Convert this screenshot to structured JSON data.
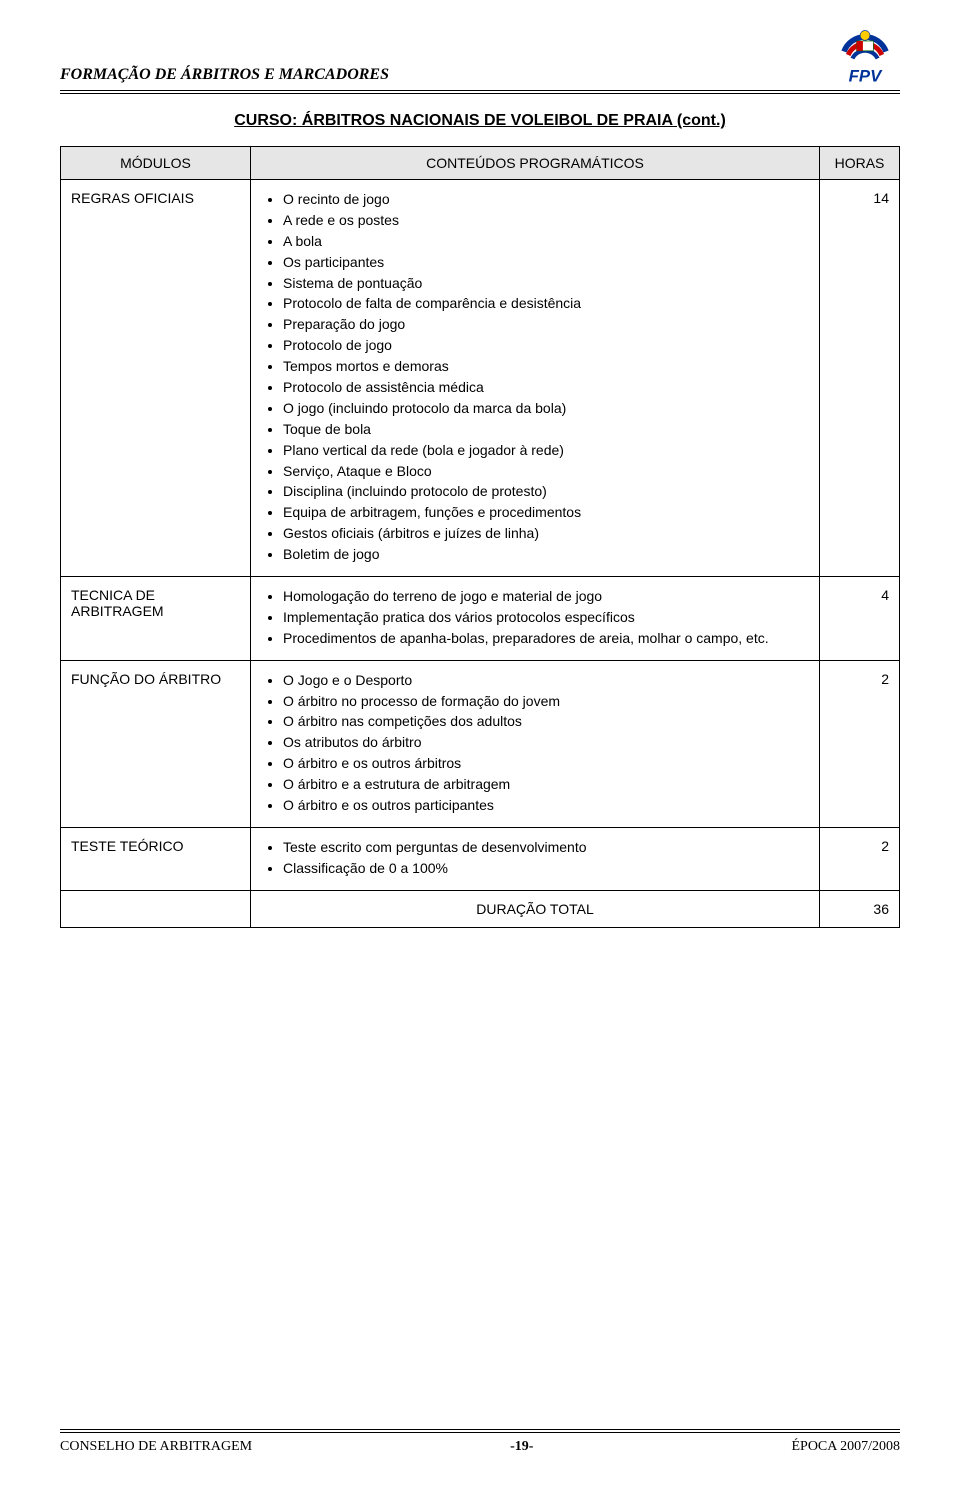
{
  "header": {
    "title": "FORMAÇÃO DE ÁRBITROS E MARCADORES",
    "logo_letters": "FPV",
    "logo_colors": {
      "arc1": "#003399",
      "arc2": "#cc0000",
      "arc3": "#003399",
      "dot": "#ffcc00",
      "text": "#003399"
    }
  },
  "course_title": "CURSO: ÁRBITROS NACIONAIS DE VOLEIBOL DE PRAIA (cont.)",
  "table": {
    "headers": {
      "modules": "MÓDULOS",
      "content": "CONTEÚDOS PROGRAMÁTICOS",
      "hours": "HORAS"
    },
    "header_bg": "#e6e6e6",
    "border_color": "#000000",
    "rows": [
      {
        "module": "REGRAS OFICIAIS",
        "items": [
          "O recinto de jogo",
          "A rede e os postes",
          "A bola",
          "Os participantes",
          "Sistema de pontuação",
          "Protocolo de falta de comparência e desistência",
          "Preparação do jogo",
          "Protocolo de jogo",
          "Tempos mortos e demoras",
          "Protocolo de assistência médica",
          "O jogo (incluindo protocolo da marca da bola)",
          "Toque de bola",
          "Plano vertical da rede (bola e jogador à rede)",
          "Serviço, Ataque e Bloco",
          "Disciplina (incluindo protocolo de protesto)",
          "Equipa de arbitragem, funções e procedimentos",
          "Gestos oficiais (árbitros e juízes de linha)",
          "Boletim de jogo"
        ],
        "hours": "14"
      },
      {
        "module": "TECNICA DE ARBITRAGEM",
        "items": [
          "Homologação do terreno de jogo e material de jogo",
          "Implementação pratica dos vários protocolos específicos",
          "Procedimentos de apanha-bolas, preparadores de areia, molhar o campo, etc."
        ],
        "hours": "4"
      },
      {
        "module": "FUNÇÃO DO ÁRBITRO",
        "items": [
          "O Jogo e o Desporto",
          "O árbitro no processo de formação do jovem",
          "O árbitro nas competições dos adultos",
          "Os atributos do árbitro",
          "O árbitro e os outros árbitros",
          "O árbitro e a estrutura de arbitragem",
          "O árbitro e os outros participantes"
        ],
        "hours": "2"
      },
      {
        "module": "TESTE TEÓRICO",
        "items": [
          "Teste escrito com perguntas de desenvolvimento",
          "Classificação de 0 a 100%"
        ],
        "hours": "2"
      }
    ],
    "total": {
      "label": "DURAÇÃO TOTAL",
      "hours": "36"
    }
  },
  "footer": {
    "left": "CONSELHO DE ARBITRAGEM",
    "center": "-19-",
    "right": "ÉPOCA 2007/2008"
  }
}
